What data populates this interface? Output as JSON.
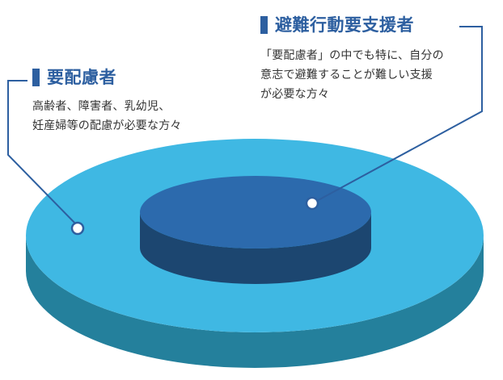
{
  "outer_circle": {
    "title": "要配慮者",
    "description": "高齢者、障害者、乳幼児、\n妊産婦等の配慮が必要な方々"
  },
  "inner_circle": {
    "title": "避難行動要支援者",
    "description": "「要配慮者」の中でも特に、自分の\n意志で避難することが難しい支援\nが必要な方々"
  },
  "colors": {
    "outer_top": "#3fb8e3",
    "outer_side": "#24809c",
    "inner_top": "#2c6aad",
    "inner_side": "#1c4670",
    "heading": "#2d5fa0",
    "leader_line": "#2d5fa0"
  }
}
